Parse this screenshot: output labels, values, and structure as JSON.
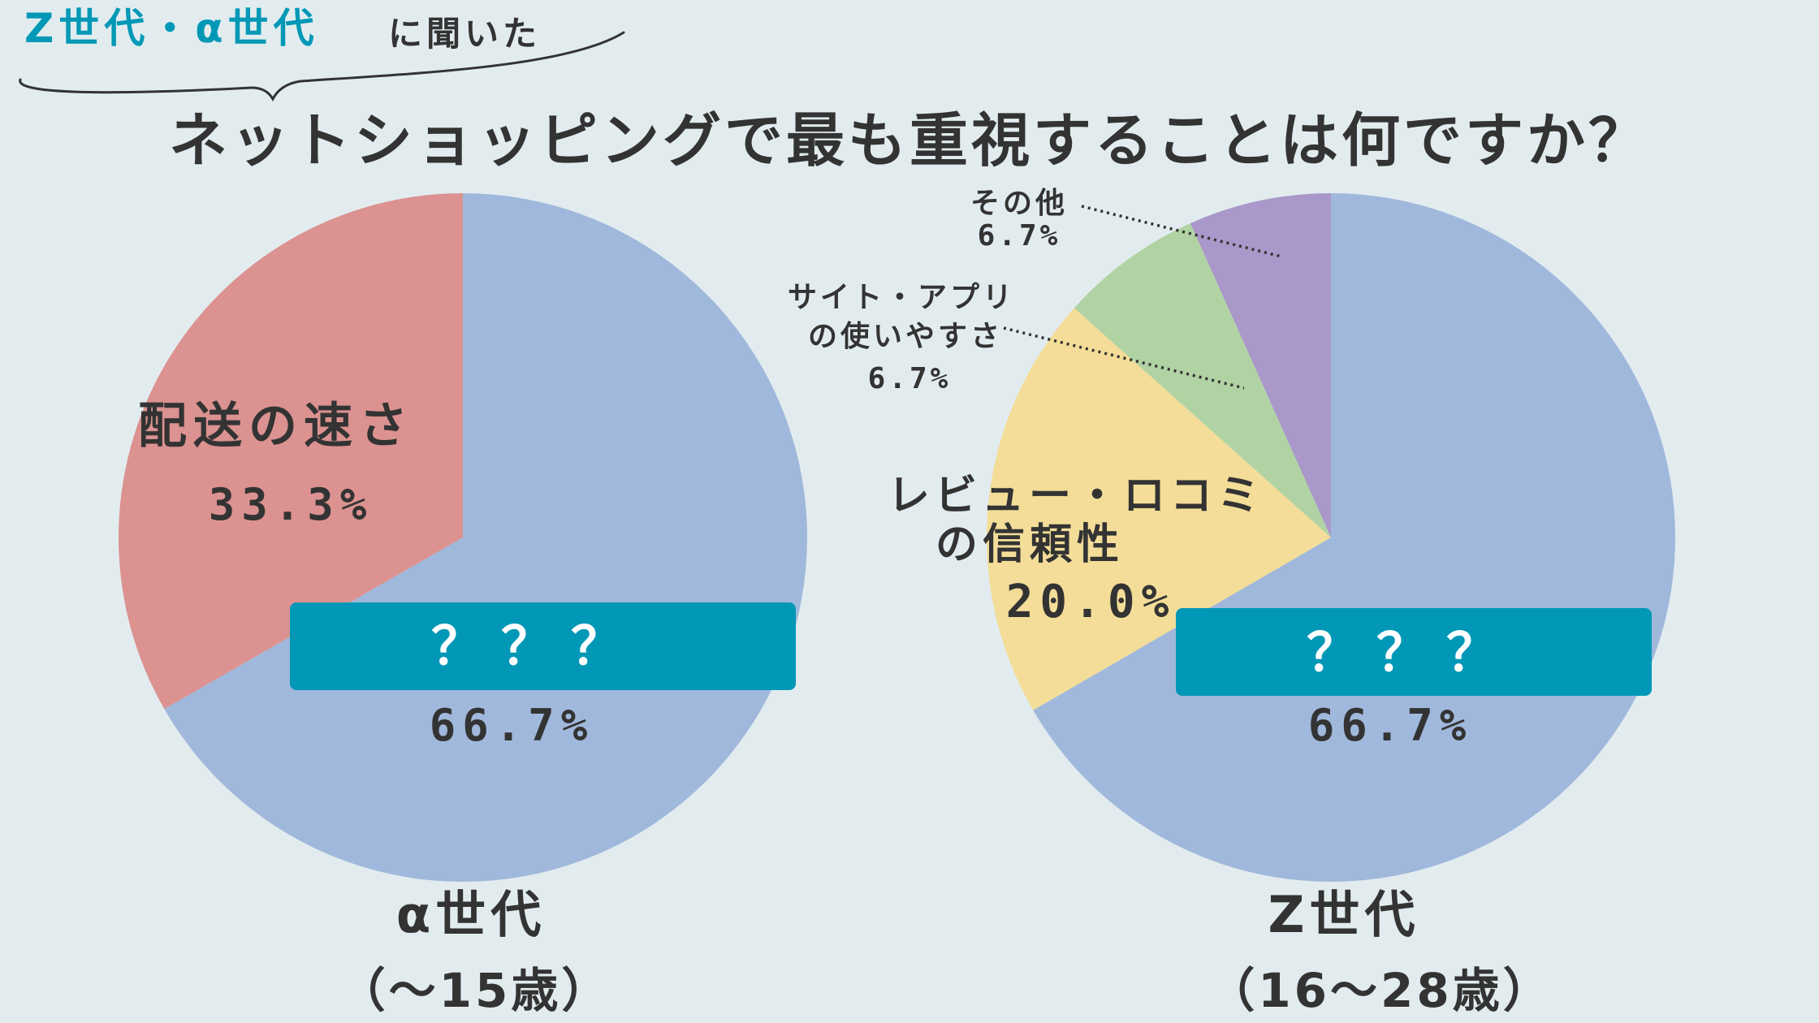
{
  "header": {
    "tag_highlight": "Z世代・α世代",
    "tag_rest": "に聞いた",
    "title": "ネットショッピングで最も重視することは何ですか？"
  },
  "colors": {
    "background": "#e2ecef",
    "blue_slice": "#a0b8db",
    "red_slice": "#db9290",
    "yellow_slice": "#f3dd98",
    "green_slice": "#b1d3a4",
    "purple_slice": "#a998c9",
    "accent_teal": "#0098b6",
    "text_dark": "#333333"
  },
  "chart_data": [
    {
      "type": "pie",
      "title": "",
      "group_label": "α世代",
      "age_range": "（～15歳）",
      "slices": [
        {
          "label": "？？？",
          "value": 66.7,
          "value_label": "66.7%",
          "color": "#a0b8db",
          "masked": true
        },
        {
          "label": "配送の速さ",
          "value": 33.3,
          "value_label": "33.3%",
          "color": "#db9290"
        }
      ]
    },
    {
      "type": "pie",
      "title": "",
      "group_label": "Z世代",
      "age_range": "（16～28歳）",
      "slices": [
        {
          "label": "？？？",
          "value": 66.7,
          "value_label": "66.7%",
          "color": "#a0b8db",
          "masked": true
        },
        {
          "label": "レビュー・ロコミ\nの信頼性",
          "value": 20.0,
          "value_label": "20.0%",
          "color": "#f3dd98"
        },
        {
          "label": "サイト・アプリ\nの使いやすさ",
          "value": 6.7,
          "value_label": "6.7%",
          "color": "#b1d3a4"
        },
        {
          "label": "その他",
          "value": 6.7,
          "value_label": "6.7%",
          "color": "#a998c9"
        }
      ]
    }
  ]
}
